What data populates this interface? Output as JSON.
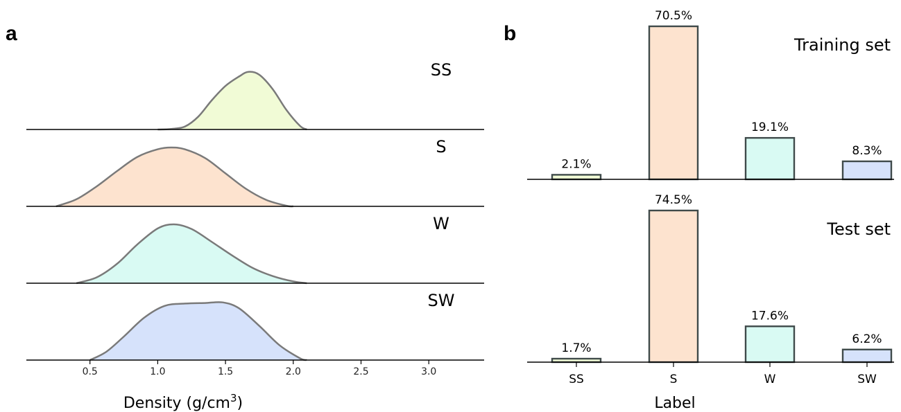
{
  "panels": {
    "a_letter": "a",
    "b_letter": "b"
  },
  "chart_data": [
    {
      "type": "area",
      "subtype": "ridgeline-density",
      "xlabel_main": "Density (g/cm",
      "xlabel_sup": "3",
      "xlabel_tail": ")",
      "x_ticks": [
        "0.5",
        "1.0",
        "1.5",
        "2.0",
        "2.5",
        "3.0"
      ],
      "x_tick_values": [
        0.5,
        1.0,
        1.5,
        2.0,
        2.5,
        3.0
      ],
      "xlim": [
        0.0,
        3.4
      ],
      "series": [
        {
          "name": "SS",
          "color": "#f1fbd6",
          "x": [
            1.0,
            1.1,
            1.2,
            1.3,
            1.4,
            1.5,
            1.6,
            1.67,
            1.75,
            1.85,
            1.95,
            2.05,
            2.1
          ],
          "y": [
            0.0,
            0.01,
            0.05,
            0.22,
            0.5,
            0.74,
            0.9,
            0.98,
            0.93,
            0.68,
            0.33,
            0.06,
            0.0
          ]
        },
        {
          "name": "S",
          "color": "#fde3cf",
          "x": [
            0.25,
            0.4,
            0.55,
            0.7,
            0.85,
            1.0,
            1.1,
            1.2,
            1.35,
            1.5,
            1.65,
            1.8,
            1.95,
            2.0
          ],
          "y": [
            0.0,
            0.12,
            0.34,
            0.6,
            0.84,
            0.97,
            1.0,
            0.97,
            0.82,
            0.56,
            0.3,
            0.11,
            0.01,
            0.0
          ]
        },
        {
          "name": "W",
          "color": "#d9faf3",
          "x": [
            0.4,
            0.55,
            0.7,
            0.85,
            1.0,
            1.12,
            1.25,
            1.4,
            1.55,
            1.7,
            1.85,
            2.0,
            2.1
          ],
          "y": [
            0.0,
            0.1,
            0.33,
            0.66,
            0.93,
            1.0,
            0.92,
            0.7,
            0.47,
            0.26,
            0.12,
            0.03,
            0.0
          ]
        },
        {
          "name": "SW",
          "color": "#d6e2fb",
          "x": [
            0.5,
            0.62,
            0.75,
            0.9,
            1.05,
            1.2,
            1.35,
            1.48,
            1.6,
            1.75,
            1.9,
            2.05,
            2.1
          ],
          "y": [
            0.0,
            0.14,
            0.4,
            0.72,
            0.92,
            0.96,
            0.97,
            0.98,
            0.88,
            0.58,
            0.25,
            0.03,
            0.0
          ]
        }
      ]
    },
    {
      "type": "bar",
      "title": "Training set",
      "categories": [
        "SS",
        "S",
        "W",
        "SW"
      ],
      "values": [
        2.1,
        70.5,
        19.1,
        8.3
      ],
      "labels": [
        "2.1%",
        "70.5%",
        "19.1%",
        "8.3%"
      ],
      "colors": [
        "#f1fbd6",
        "#fde3cf",
        "#d9faf3",
        "#d6e2fb"
      ],
      "ylim": [
        0,
        70.5
      ]
    },
    {
      "type": "bar",
      "title": "Test set",
      "categories": [
        "SS",
        "S",
        "W",
        "SW"
      ],
      "values": [
        1.7,
        74.5,
        17.6,
        6.2
      ],
      "labels": [
        "1.7%",
        "74.5%",
        "17.6%",
        "6.2%"
      ],
      "colors": [
        "#f1fbd6",
        "#fde3cf",
        "#d9faf3",
        "#d6e2fb"
      ],
      "ylim": [
        0,
        74.5
      ],
      "xlabel": "Label"
    }
  ]
}
